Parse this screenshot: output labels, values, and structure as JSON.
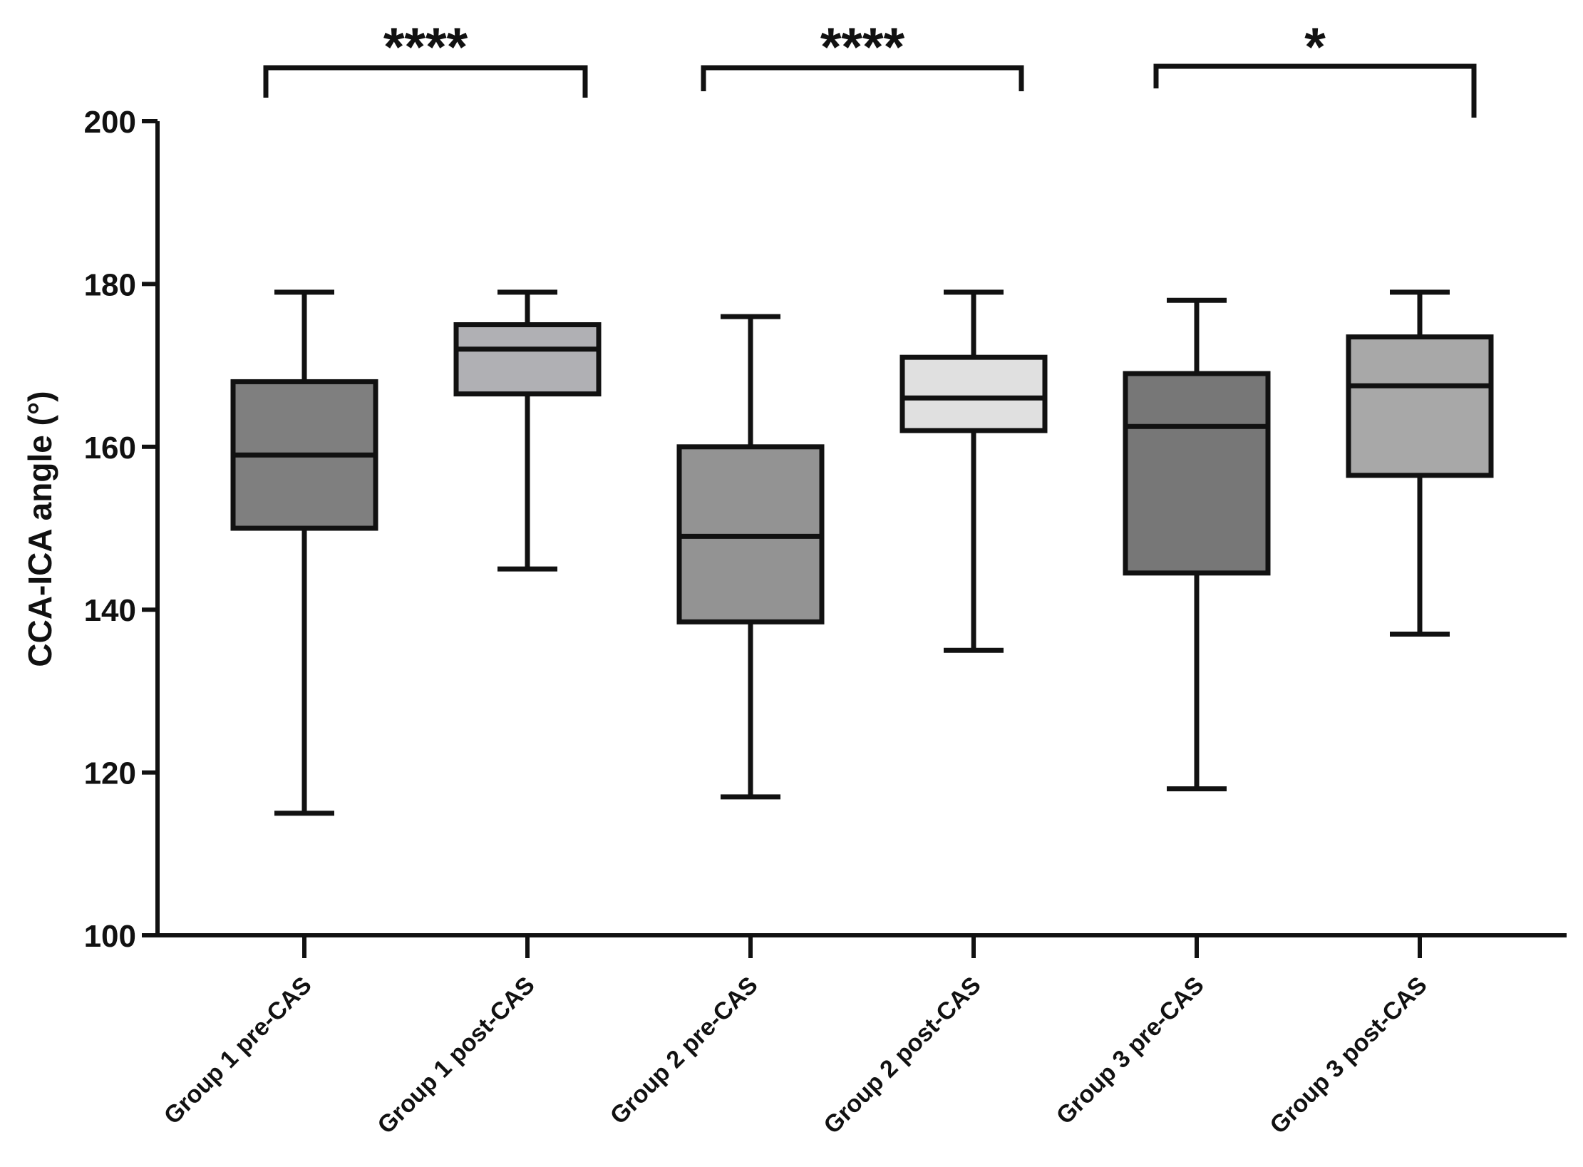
{
  "chart_data": {
    "type": "boxplot",
    "title": "",
    "xlabel": "",
    "ylabel": "CCA-ICA angle (°)",
    "ylim": [
      100,
      200
    ],
    "yticks": [
      100,
      120,
      140,
      160,
      180,
      200
    ],
    "categories": [
      "Group 1 pre-CAS",
      "Group 1 post-CAS",
      "Group 2 pre-CAS",
      "Group 2 post-CAS",
      "Group 3 pre-CAS",
      "Group 3 post-CAS"
    ],
    "boxes": [
      {
        "category": "Group 1 pre-CAS",
        "min": 115,
        "q1": 150,
        "median": 159,
        "q3": 168,
        "max": 179,
        "fill": "#7f7f7f"
      },
      {
        "category": "Group 1 post-CAS",
        "min": 145,
        "q1": 166.5,
        "median": 172,
        "q3": 175,
        "max": 179,
        "fill": "#b0b0b4"
      },
      {
        "category": "Group 2 pre-CAS",
        "min": 117,
        "q1": 138.5,
        "median": 149,
        "q3": 160,
        "max": 176,
        "fill": "#939393"
      },
      {
        "category": "Group 2 post-CAS",
        "min": 135,
        "q1": 162,
        "median": 166,
        "q3": 171,
        "max": 179,
        "fill": "#e0e0e0"
      },
      {
        "category": "Group 3 pre-CAS",
        "min": 118,
        "q1": 144.5,
        "median": 162.5,
        "q3": 169,
        "max": 178,
        "fill": "#777777"
      },
      {
        "category": "Group 3 post-CAS",
        "min": 137,
        "q1": 156.5,
        "median": 167.5,
        "q3": 173.5,
        "max": 179,
        "fill": "#a8a8a8"
      }
    ],
    "significance": [
      {
        "from": "Group 1 pre-CAS",
        "to": "Group 1 post-CAS",
        "label": "****"
      },
      {
        "from": "Group 2 pre-CAS",
        "to": "Group 2 post-CAS",
        "label": "****"
      },
      {
        "from": "Group 3 pre-CAS",
        "to": "Group 3 post-CAS",
        "label": "*"
      }
    ],
    "grid": false,
    "legend": "none"
  }
}
